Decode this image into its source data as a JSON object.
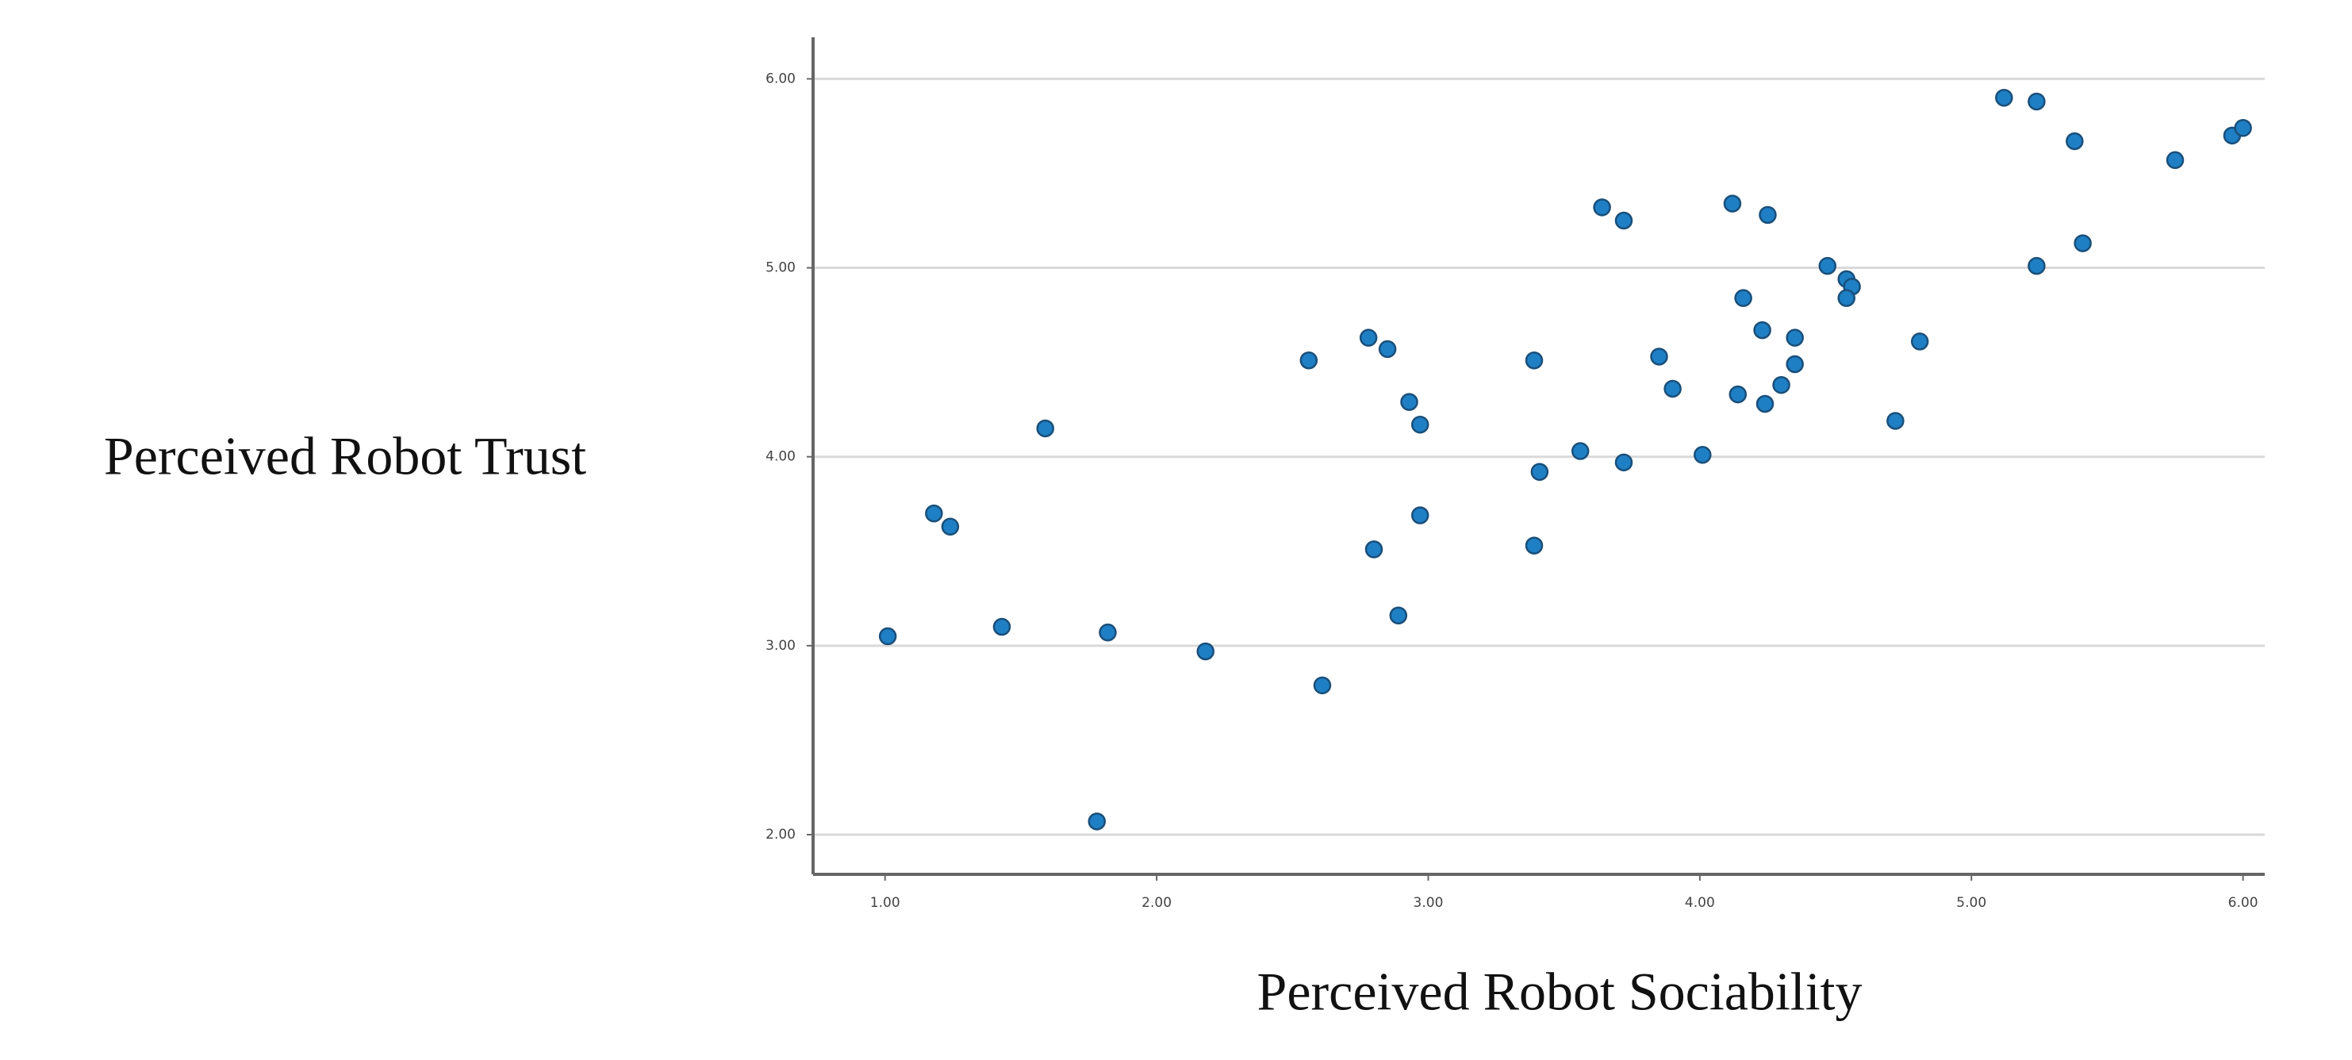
{
  "chart_data": {
    "type": "scatter",
    "x_label": "Perceived Robot Sociability",
    "y_label": "Perceived Robot Trust",
    "x": [
      5.12,
      5.24,
      5.38,
      5.75,
      5.96,
      6.0,
      3.64,
      3.72,
      4.12,
      4.25,
      5.41,
      4.47,
      5.24,
      4.54,
      4.56,
      4.54,
      4.16,
      4.23,
      4.35,
      4.81,
      4.35,
      3.85,
      3.9,
      4.14,
      4.3,
      4.24,
      4.72,
      4.01,
      3.56,
      3.41,
      3.72,
      3.39,
      2.56,
      2.78,
      2.85,
      2.93,
      2.97,
      2.97,
      2.8,
      3.39,
      2.89,
      2.61,
      2.18,
      1.82,
      1.78,
      1.59,
      1.18,
      1.24,
      1.43,
      1.01
    ],
    "values": [
      5.9,
      5.88,
      5.67,
      5.57,
      5.7,
      5.74,
      5.32,
      5.25,
      5.34,
      5.28,
      5.13,
      5.01,
      5.01,
      4.94,
      4.9,
      4.84,
      4.84,
      4.67,
      4.63,
      4.61,
      4.49,
      4.53,
      4.36,
      4.33,
      4.38,
      4.28,
      4.19,
      4.01,
      4.03,
      3.92,
      3.97,
      4.51,
      4.51,
      4.63,
      4.57,
      4.29,
      4.17,
      3.69,
      3.51,
      3.53,
      3.16,
      2.79,
      2.97,
      3.07,
      2.07,
      4.15,
      3.7,
      3.63,
      3.1,
      3.05
    ],
    "color": "#1f7fc4",
    "xlim": [
      0.735,
      6.08
    ],
    "ylim": [
      1.79,
      6.22
    ],
    "xticks": [
      {
        "value": 1,
        "label": "1.00"
      },
      {
        "value": 2,
        "label": "2.00"
      },
      {
        "value": 3,
        "label": "3.00"
      },
      {
        "value": 4,
        "label": "4.00"
      },
      {
        "value": 5,
        "label": "5.00"
      },
      {
        "value": 6,
        "label": "6.00"
      }
    ],
    "yticks": [
      {
        "value": 2,
        "label": "2.00"
      },
      {
        "value": 3,
        "label": "3.00"
      },
      {
        "value": 4,
        "label": "4.00"
      },
      {
        "value": 5,
        "label": "5.00"
      },
      {
        "value": 6,
        "label": "6.00"
      }
    ],
    "grid": true
  }
}
